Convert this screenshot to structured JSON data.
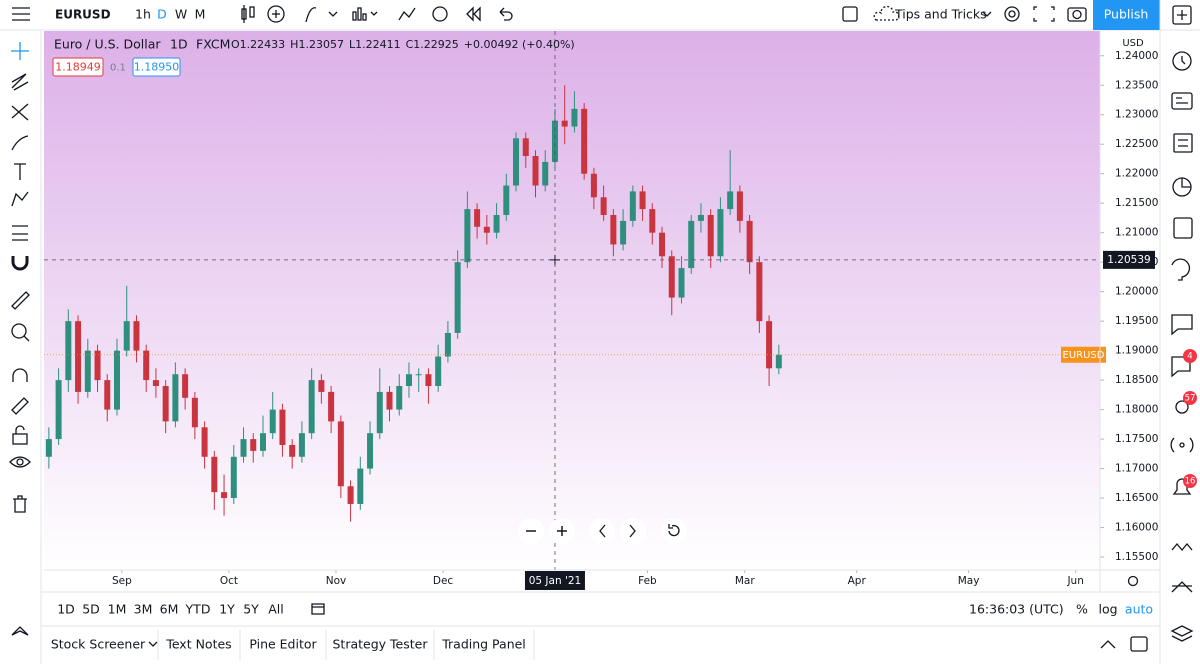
{
  "toolbar": {
    "symbol": "EURUSD",
    "intervals": [
      "1h",
      "D",
      "W",
      "M"
    ],
    "tips": "Tips and Tricks",
    "publish": "Publish"
  },
  "chart_data": {
    "type": "candlestick",
    "title": "Euro / U.S. Dollar",
    "interval": "1D",
    "source": "FXCM",
    "legend_values": [
      {
        "label": "O",
        "value": "1.22433"
      },
      {
        "label": "H",
        "value": "1.23057"
      },
      {
        "label": "L",
        "value": "1.22411"
      },
      {
        "label": "C",
        "value": "1.22925"
      }
    ],
    "change": "+0.00492 (+0.40%)",
    "bid": "1.18949",
    "spread": "0.1",
    "ask": "1.18950",
    "currency": "USD",
    "up_color": "#2f8f7e",
    "down_color": "#c9343f",
    "series": [
      {
        "name": "EURUSD",
        "color": "#f7931a",
        "values": [
          [
            1.172,
            1.177,
            1.17,
            1.175
          ],
          [
            1.175,
            1.187,
            1.174,
            1.185
          ],
          [
            1.185,
            1.197,
            1.183,
            1.195
          ],
          [
            1.195,
            1.196,
            1.181,
            1.183
          ],
          [
            1.183,
            1.192,
            1.182,
            1.19
          ],
          [
            1.19,
            1.191,
            1.183,
            1.185
          ],
          [
            1.185,
            1.186,
            1.178,
            1.18
          ],
          [
            1.18,
            1.192,
            1.179,
            1.19
          ],
          [
            1.19,
            1.201,
            1.189,
            1.195
          ],
          [
            1.195,
            1.196,
            1.188,
            1.19
          ],
          [
            1.19,
            1.191,
            1.183,
            1.185
          ],
          [
            1.185,
            1.187,
            1.182,
            1.184
          ],
          [
            1.184,
            1.185,
            1.176,
            1.178
          ],
          [
            1.178,
            1.188,
            1.177,
            1.186
          ],
          [
            1.186,
            1.187,
            1.18,
            1.182
          ],
          [
            1.182,
            1.183,
            1.175,
            1.177
          ],
          [
            1.177,
            1.178,
            1.17,
            1.172
          ],
          [
            1.172,
            1.173,
            1.163,
            1.166
          ],
          [
            1.166,
            1.169,
            1.162,
            1.165
          ],
          [
            1.165,
            1.174,
            1.164,
            1.172
          ],
          [
            1.172,
            1.177,
            1.171,
            1.175
          ],
          [
            1.175,
            1.176,
            1.171,
            1.173
          ],
          [
            1.173,
            1.179,
            1.172,
            1.176
          ],
          [
            1.176,
            1.183,
            1.175,
            1.18
          ],
          [
            1.18,
            1.181,
            1.172,
            1.174
          ],
          [
            1.174,
            1.175,
            1.17,
            1.172
          ],
          [
            1.172,
            1.178,
            1.171,
            1.176
          ],
          [
            1.176,
            1.187,
            1.175,
            1.185
          ],
          [
            1.185,
            1.186,
            1.181,
            1.183
          ],
          [
            1.183,
            1.184,
            1.176,
            1.178
          ],
          [
            1.178,
            1.179,
            1.165,
            1.167
          ],
          [
            1.167,
            1.168,
            1.161,
            1.164
          ],
          [
            1.164,
            1.172,
            1.163,
            1.17
          ],
          [
            1.17,
            1.178,
            1.169,
            1.176
          ],
          [
            1.176,
            1.187,
            1.175,
            1.183
          ],
          [
            1.183,
            1.184,
            1.178,
            1.18
          ],
          [
            1.18,
            1.186,
            1.179,
            1.184
          ],
          [
            1.184,
            1.188,
            1.182,
            1.186
          ],
          [
            1.186,
            1.187,
            1.183,
            1.186
          ],
          [
            1.186,
            1.187,
            1.181,
            1.184
          ],
          [
            1.184,
            1.191,
            1.183,
            1.189
          ],
          [
            1.189,
            1.195,
            1.188,
            1.193
          ],
          [
            1.193,
            1.207,
            1.192,
            1.205
          ],
          [
            1.205,
            1.217,
            1.204,
            1.214
          ],
          [
            1.214,
            1.215,
            1.209,
            1.211
          ],
          [
            1.211,
            1.213,
            1.208,
            1.21
          ],
          [
            1.21,
            1.215,
            1.209,
            1.213
          ],
          [
            1.213,
            1.22,
            1.212,
            1.218
          ],
          [
            1.218,
            1.227,
            1.217,
            1.226
          ],
          [
            1.226,
            1.227,
            1.221,
            1.223
          ],
          [
            1.223,
            1.224,
            1.216,
            1.218
          ],
          [
            1.218,
            1.224,
            1.217,
            1.222
          ],
          [
            1.222,
            1.231,
            1.221,
            1.229
          ],
          [
            1.229,
            1.235,
            1.225,
            1.228
          ],
          [
            1.228,
            1.234,
            1.227,
            1.231
          ],
          [
            1.231,
            1.232,
            1.219,
            1.22
          ],
          [
            1.22,
            1.221,
            1.214,
            1.216
          ],
          [
            1.216,
            1.218,
            1.212,
            1.213
          ],
          [
            1.213,
            1.214,
            1.206,
            1.208
          ],
          [
            1.208,
            1.214,
            1.207,
            1.212
          ],
          [
            1.212,
            1.218,
            1.211,
            1.217
          ],
          [
            1.217,
            1.218,
            1.212,
            1.214
          ],
          [
            1.214,
            1.215,
            1.208,
            1.21
          ],
          [
            1.21,
            1.211,
            1.204,
            1.206
          ],
          [
            1.206,
            1.207,
            1.196,
            1.199
          ],
          [
            1.199,
            1.206,
            1.198,
            1.204
          ],
          [
            1.204,
            1.213,
            1.203,
            1.212
          ],
          [
            1.212,
            1.215,
            1.21,
            1.213
          ],
          [
            1.213,
            1.214,
            1.204,
            1.206
          ],
          [
            1.206,
            1.216,
            1.205,
            1.214
          ],
          [
            1.214,
            1.224,
            1.213,
            1.217
          ],
          [
            1.217,
            1.218,
            1.21,
            1.212
          ],
          [
            1.212,
            1.213,
            1.203,
            1.205
          ],
          [
            1.205,
            1.206,
            1.193,
            1.195
          ],
          [
            1.195,
            1.196,
            1.184,
            1.187
          ],
          [
            1.187,
            1.191,
            1.186,
            1.1893
          ]
        ]
      }
    ],
    "xlim": [
      -0.5,
      108
    ],
    "xticks": [
      {
        "value": 7.5,
        "label": "Sep"
      },
      {
        "value": 18.5,
        "label": "Oct"
      },
      {
        "value": 29.5,
        "label": "Nov"
      },
      {
        "value": 40.5,
        "label": "Dec"
      },
      {
        "value": 61.5,
        "label": "Feb"
      },
      {
        "value": 71.5,
        "label": "Mar"
      },
      {
        "value": 83,
        "label": "Apr"
      },
      {
        "value": 94.5,
        "label": "May"
      },
      {
        "value": 105.5,
        "label": "Jun"
      }
    ],
    "ylim": [
      1.1528,
      1.2442
    ],
    "yticks": [
      {
        "value": 1.24,
        "label": "1.24000"
      },
      {
        "value": 1.235,
        "label": "1.23500"
      },
      {
        "value": 1.23,
        "label": "1.23000"
      },
      {
        "value": 1.225,
        "label": "1.22500"
      },
      {
        "value": 1.22,
        "label": "1.22000"
      },
      {
        "value": 1.215,
        "label": "1.21500"
      },
      {
        "value": 1.21,
        "label": "1.21000"
      },
      {
        "value": 1.205,
        "label": "1.20500"
      },
      {
        "value": 1.2,
        "label": "1.20000"
      },
      {
        "value": 1.195,
        "label": "1.19500"
      },
      {
        "value": 1.19,
        "label": "1.19000"
      },
      {
        "value": 1.185,
        "label": "1.18500"
      },
      {
        "value": 1.18,
        "label": "1.18000"
      },
      {
        "value": 1.175,
        "label": "1.17500"
      },
      {
        "value": 1.17,
        "label": "1.17000"
      },
      {
        "value": 1.165,
        "label": "1.16500"
      },
      {
        "value": 1.16,
        "label": "1.16000"
      },
      {
        "value": 1.155,
        "label": "1.15500"
      }
    ],
    "crosshair": {
      "price": 1.20539,
      "x": {
        "value": 52,
        "label": "05 Jan '21"
      }
    }
  },
  "range_bar": {
    "ranges": [
      "1D",
      "5D",
      "1M",
      "3M",
      "6M",
      "YTD",
      "1Y",
      "5Y",
      "All"
    ],
    "time": "16:36:03 (UTC)",
    "options": [
      "%",
      "log",
      "auto"
    ]
  },
  "bottom_tabs": [
    "Stock Screener",
    "Text Notes",
    "Pine Editor",
    "Strategy Tester",
    "Trading Panel"
  ],
  "badges": [
    "4",
    "57",
    "16"
  ]
}
